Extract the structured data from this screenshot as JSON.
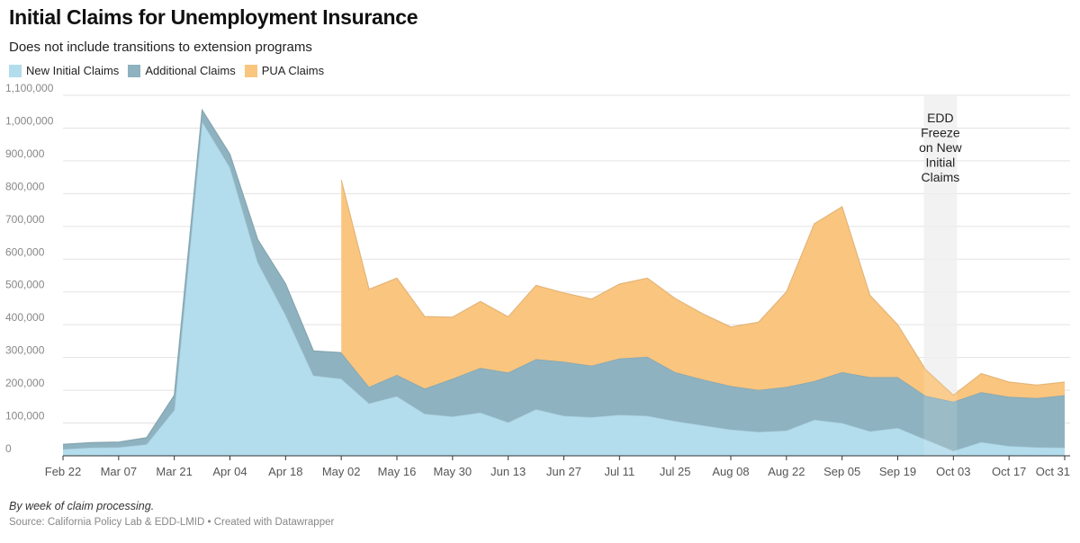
{
  "header": {
    "title": "Initial Claims for Unemployment Insurance",
    "subtitle": "Does not include transitions to extension programs"
  },
  "legend": [
    {
      "label": "New Initial Claims",
      "color": "#b3dcec"
    },
    {
      "label": "Additional Claims",
      "color": "#8eb2bf"
    },
    {
      "label": "PUA Claims",
      "color": "#fac57f"
    }
  ],
  "footer": {
    "note": "By week of claim processing.",
    "source_label": "Source: ",
    "source": "California Policy Lab & EDD-LMID",
    "separator": " • ",
    "credit": "Created with Datawrapper"
  },
  "chart_data": {
    "type": "area",
    "stacked": true,
    "x": [
      "Feb 22",
      "Feb 29",
      "Mar 07",
      "Mar 14",
      "Mar 21",
      "Mar 28",
      "Apr 04",
      "Apr 11",
      "Apr 18",
      "Apr 25",
      "May 02",
      "May 09",
      "May 16",
      "May 23",
      "May 30",
      "Jun 06",
      "Jun 13",
      "Jun 20",
      "Jun 27",
      "Jul 04",
      "Jul 11",
      "Jul 18",
      "Jul 25",
      "Aug 01",
      "Aug 08",
      "Aug 15",
      "Aug 22",
      "Aug 29",
      "Sep 05",
      "Sep 12",
      "Sep 19",
      "Sep 26",
      "Oct 03",
      "Oct 10",
      "Oct 17",
      "Oct 24",
      "Oct 31"
    ],
    "x_tick_labels": [
      "Feb 22",
      "Mar 07",
      "Mar 21",
      "Apr 04",
      "Apr 18",
      "May 02",
      "May 16",
      "May 30",
      "Jun 13",
      "Jun 27",
      "Jul 11",
      "Jul 25",
      "Aug 08",
      "Aug 22",
      "Sep 05",
      "Sep 19",
      "Oct 03",
      "Oct 17",
      "Oct 31"
    ],
    "series": [
      {
        "name": "New Initial Claims",
        "color": "#b3dcec",
        "values": [
          20000,
          25000,
          26000,
          35000,
          140000,
          1020000,
          880000,
          590000,
          430000,
          245000,
          235000,
          160000,
          182000,
          128000,
          120000,
          132000,
          102000,
          142000,
          122000,
          118000,
          125000,
          122000,
          106000,
          93000,
          80000,
          73000,
          77000,
          110000,
          100000,
          75000,
          85000,
          50000,
          15000,
          42000,
          30000,
          26000,
          25000
        ]
      },
      {
        "name": "Additional Claims",
        "color": "#8eb2bf",
        "values": [
          15000,
          15000,
          16000,
          20000,
          45000,
          35000,
          40000,
          70000,
          95000,
          75000,
          80000,
          50000,
          65000,
          77000,
          115000,
          136000,
          152000,
          153000,
          165000,
          157000,
          172000,
          180000,
          149000,
          140000,
          133000,
          128000,
          133000,
          118000,
          155000,
          165000,
          155000,
          133000,
          150000,
          152000,
          150000,
          150000,
          160000
        ]
      },
      {
        "name": "PUA Claims",
        "color": "#fac57f",
        "values": [
          0,
          0,
          0,
          0,
          0,
          0,
          0,
          0,
          0,
          0,
          527000,
          298000,
          295000,
          220000,
          188000,
          203000,
          170000,
          225000,
          210000,
          203000,
          227000,
          240000,
          225000,
          200000,
          180000,
          207000,
          290000,
          480000,
          505000,
          250000,
          160000,
          80000,
          20000,
          57000,
          45000,
          40000,
          40000
        ]
      }
    ],
    "y_ticks": [
      "0",
      "100,000",
      "200,000",
      "300,000",
      "400,000",
      "500,000",
      "600,000",
      "700,000",
      "800,000",
      "900,000",
      "1,000,000",
      "1,100,000"
    ],
    "ylim": [
      0,
      1100000
    ],
    "grid": true,
    "annotation": {
      "lines": [
        "EDD",
        "Freeze",
        "on New",
        "Initial",
        "Claims"
      ],
      "x_start": "Sep 26",
      "x_end": "Oct 03"
    }
  }
}
